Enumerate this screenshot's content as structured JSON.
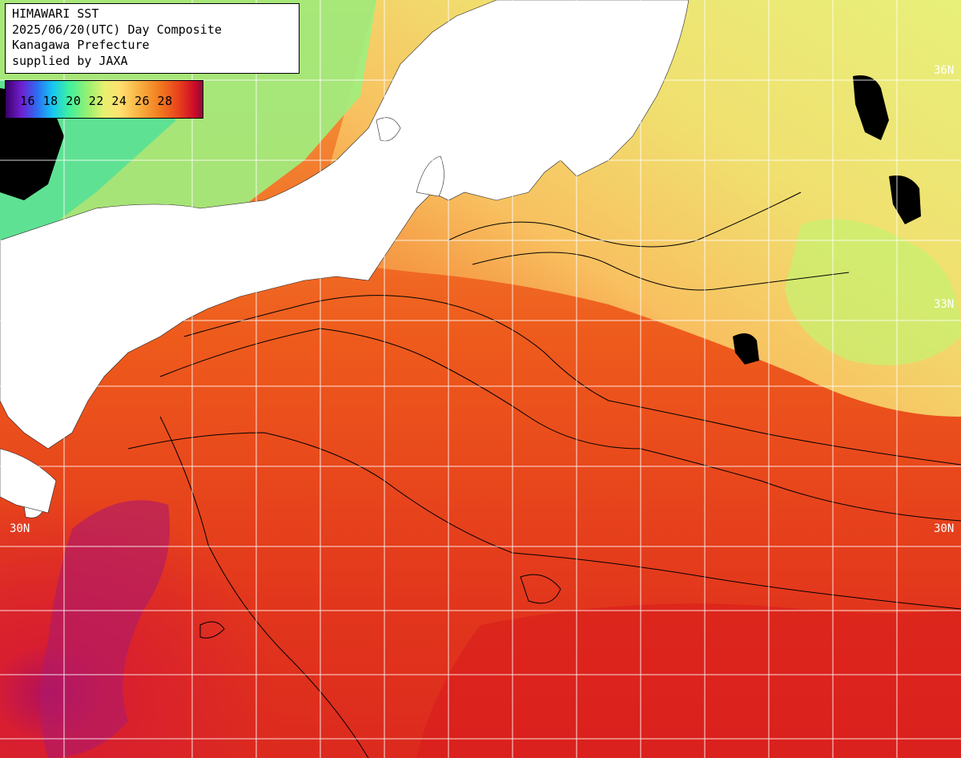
{
  "title_box": {
    "line1": "HIMAWARI SST",
    "line2": "2025/06/20(UTC) Day Composite",
    "line3": "Kanagawa Prefecture",
    "line4": "supplied by JAXA"
  },
  "legend": {
    "ticks": "16 18 20 22 24 26 28"
  },
  "lat_labels": {
    "n36_right": "36N",
    "n33_right": "33N",
    "n30_left": "30N",
    "n30_right": "30N"
  },
  "colors": {
    "land": "#ffffff",
    "warm_core": "#d8141e",
    "kuroshio": "#e8381c",
    "mid": "#f27a20",
    "cool": "#f8c060",
    "cold": "#e8f07a",
    "grid": "#ffffff",
    "contour": "#000000"
  }
}
